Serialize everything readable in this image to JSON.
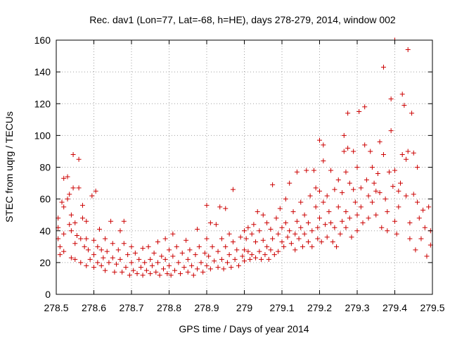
{
  "chart_data": {
    "type": "scatter",
    "title": "Rec. dav1 (Lon=77, Lat=-68, h=HE), days 278-279, 2014, window 002",
    "xlabel": "GPS time / Days of year 2014",
    "ylabel": "STEC from uqrg / TECUs",
    "xlim": [
      278.5,
      279.5
    ],
    "ylim": [
      0,
      160
    ],
    "xticks": [
      "278.5",
      "278.6",
      "278.7",
      "278.8",
      "278.9",
      "279",
      "279.1",
      "279.2",
      "279.3",
      "279.4",
      "279.5"
    ],
    "yticks": [
      "0",
      "20",
      "40",
      "60",
      "80",
      "100",
      "120",
      "140",
      "160"
    ],
    "grid": true,
    "legend": "none",
    "marker": "plus",
    "color": "#cc0000",
    "series": [
      {
        "points": [
          [
            278.505,
            48
          ],
          [
            278.505,
            42
          ],
          [
            278.505,
            35
          ],
          [
            278.51,
            30
          ],
          [
            278.51,
            25
          ],
          [
            278.515,
            58
          ],
          [
            278.52,
            73
          ],
          [
            278.52,
            55
          ],
          [
            278.52,
            38
          ],
          [
            278.52,
            27
          ],
          [
            278.53,
            74
          ],
          [
            278.53,
            60
          ],
          [
            278.535,
            63
          ],
          [
            278.535,
            44
          ],
          [
            278.54,
            50
          ],
          [
            278.54,
            40
          ],
          [
            278.54,
            23
          ],
          [
            278.545,
            88
          ],
          [
            278.545,
            67
          ],
          [
            278.55,
            45
          ],
          [
            278.55,
            32
          ],
          [
            278.55,
            22
          ],
          [
            278.555,
            37
          ],
          [
            278.56,
            85
          ],
          [
            278.56,
            67
          ],
          [
            278.565,
            35
          ],
          [
            278.565,
            20
          ],
          [
            278.57,
            56
          ],
          [
            278.57,
            48
          ],
          [
            278.575,
            30
          ],
          [
            278.58,
            46
          ],
          [
            278.58,
            35
          ],
          [
            278.58,
            18
          ],
          [
            278.585,
            28
          ],
          [
            278.59,
            22
          ],
          [
            278.595,
            62
          ],
          [
            278.6,
            34
          ],
          [
            278.6,
            25
          ],
          [
            278.6,
            17
          ],
          [
            278.605,
            65
          ],
          [
            278.61,
            30
          ],
          [
            278.61,
            20
          ],
          [
            278.615,
            41
          ],
          [
            278.62,
            28
          ],
          [
            278.62,
            18
          ],
          [
            278.625,
            23
          ],
          [
            278.63,
            35
          ],
          [
            278.63,
            15
          ],
          [
            278.635,
            27
          ],
          [
            278.64,
            20
          ],
          [
            278.645,
            46
          ],
          [
            278.65,
            32
          ],
          [
            278.65,
            23
          ],
          [
            278.655,
            14
          ],
          [
            278.66,
            19
          ],
          [
            278.665,
            28
          ],
          [
            278.67,
            40
          ],
          [
            278.67,
            22
          ],
          [
            278.675,
            14
          ],
          [
            278.68,
            46
          ],
          [
            278.68,
            32
          ],
          [
            278.685,
            17
          ],
          [
            278.69,
            25
          ],
          [
            278.695,
            12
          ],
          [
            278.7,
            30
          ],
          [
            278.7,
            20
          ],
          [
            278.705,
            15
          ],
          [
            278.71,
            26
          ],
          [
            278.715,
            13
          ],
          [
            278.72,
            22
          ],
          [
            278.725,
            17
          ],
          [
            278.73,
            29
          ],
          [
            278.73,
            12
          ],
          [
            278.735,
            20
          ],
          [
            278.74,
            15
          ],
          [
            278.745,
            30
          ],
          [
            278.75,
            22
          ],
          [
            278.75,
            13
          ],
          [
            278.755,
            18
          ],
          [
            278.76,
            26
          ],
          [
            278.765,
            14
          ],
          [
            278.77,
            33
          ],
          [
            278.77,
            20
          ],
          [
            278.775,
            12
          ],
          [
            278.78,
            24
          ],
          [
            278.785,
            16
          ],
          [
            278.79,
            35
          ],
          [
            278.79,
            22
          ],
          [
            278.795,
            13
          ],
          [
            278.8,
            28
          ],
          [
            278.8,
            18
          ],
          [
            278.805,
            12
          ],
          [
            278.81,
            38
          ],
          [
            278.81,
            24
          ],
          [
            278.815,
            15
          ],
          [
            278.82,
            30
          ],
          [
            278.825,
            20
          ],
          [
            278.83,
            13
          ],
          [
            278.835,
            26
          ],
          [
            278.84,
            17
          ],
          [
            278.845,
            34
          ],
          [
            278.85,
            22
          ],
          [
            278.85,
            14
          ],
          [
            278.855,
            28
          ],
          [
            278.86,
            18
          ],
          [
            278.865,
            12
          ],
          [
            278.87,
            25
          ],
          [
            278.875,
            41
          ],
          [
            278.875,
            16
          ],
          [
            278.88,
            30
          ],
          [
            278.885,
            20
          ],
          [
            278.89,
            14
          ],
          [
            278.895,
            26
          ],
          [
            278.9,
            56
          ],
          [
            278.9,
            35
          ],
          [
            278.9,
            18
          ],
          [
            278.905,
            24
          ],
          [
            278.91,
            45
          ],
          [
            278.91,
            16
          ],
          [
            278.915,
            30
          ],
          [
            278.92,
            21
          ],
          [
            278.925,
            44
          ],
          [
            278.93,
            27
          ],
          [
            278.93,
            17
          ],
          [
            278.935,
            55
          ],
          [
            278.94,
            35
          ],
          [
            278.94,
            22
          ],
          [
            278.945,
            16
          ],
          [
            278.95,
            54
          ],
          [
            278.95,
            30
          ],
          [
            278.955,
            20
          ],
          [
            278.96,
            38
          ],
          [
            278.96,
            25
          ],
          [
            278.965,
            17
          ],
          [
            278.97,
            66
          ],
          [
            278.97,
            33
          ],
          [
            278.975,
            22
          ],
          [
            278.98,
            28
          ],
          [
            278.985,
            18
          ],
          [
            278.99,
            36
          ],
          [
            278.995,
            24
          ],
          [
            279.0,
            40
          ],
          [
            279.0,
            28
          ],
          [
            279.0,
            21
          ],
          [
            279.005,
            35
          ],
          [
            279.01,
            42
          ],
          [
            279.01,
            27
          ],
          [
            279.015,
            22
          ],
          [
            279.02,
            38
          ],
          [
            279.02,
            25
          ],
          [
            279.025,
            44
          ],
          [
            279.03,
            33
          ],
          [
            279.03,
            23
          ],
          [
            279.035,
            52
          ],
          [
            279.04,
            40
          ],
          [
            279.04,
            27
          ],
          [
            279.045,
            22
          ],
          [
            279.05,
            50
          ],
          [
            279.05,
            34
          ],
          [
            279.055,
            25
          ],
          [
            279.06,
            45
          ],
          [
            279.06,
            30
          ],
          [
            279.065,
            22
          ],
          [
            279.07,
            41
          ],
          [
            279.07,
            28
          ],
          [
            279.075,
            69
          ],
          [
            279.075,
            35
          ],
          [
            279.08,
            25
          ],
          [
            279.085,
            48
          ],
          [
            279.09,
            38
          ],
          [
            279.09,
            27
          ],
          [
            279.095,
            54
          ],
          [
            279.1,
            42
          ],
          [
            279.1,
            33
          ],
          [
            279.105,
            30
          ],
          [
            279.11,
            60
          ],
          [
            279.11,
            45
          ],
          [
            279.115,
            36
          ],
          [
            279.12,
            70
          ],
          [
            279.12,
            40
          ],
          [
            279.125,
            32
          ],
          [
            279.13,
            52
          ],
          [
            279.135,
            38
          ],
          [
            279.135,
            28
          ],
          [
            279.14,
            77
          ],
          [
            279.14,
            46
          ],
          [
            279.145,
            35
          ],
          [
            279.15,
            58
          ],
          [
            279.15,
            42
          ],
          [
            279.155,
            30
          ],
          [
            279.16,
            50
          ],
          [
            279.16,
            38
          ],
          [
            279.165,
            78
          ],
          [
            279.17,
            45
          ],
          [
            279.17,
            33
          ],
          [
            279.175,
            62
          ],
          [
            279.18,
            40
          ],
          [
            279.18,
            30
          ],
          [
            279.185,
            78
          ],
          [
            279.19,
            55
          ],
          [
            279.19,
            67
          ],
          [
            279.195,
            42
          ],
          [
            279.195,
            35
          ],
          [
            279.2,
            97
          ],
          [
            279.2,
            65
          ],
          [
            279.2,
            48
          ],
          [
            279.205,
            33
          ],
          [
            279.21,
            94
          ],
          [
            279.21,
            84
          ],
          [
            279.21,
            58
          ],
          [
            279.215,
            44
          ],
          [
            279.22,
            62
          ],
          [
            279.22,
            36
          ],
          [
            279.225,
            52
          ],
          [
            279.23,
            78
          ],
          [
            279.23,
            45
          ],
          [
            279.235,
            33
          ],
          [
            279.24,
            66
          ],
          [
            279.24,
            42
          ],
          [
            279.245,
            30
          ],
          [
            279.25,
            72
          ],
          [
            279.25,
            55
          ],
          [
            279.255,
            38
          ],
          [
            279.26,
            64
          ],
          [
            279.26,
            46
          ],
          [
            279.265,
            100
          ],
          [
            279.265,
            90
          ],
          [
            279.27,
            77
          ],
          [
            279.27,
            52
          ],
          [
            279.27,
            42
          ],
          [
            279.275,
            114
          ],
          [
            279.275,
            92
          ],
          [
            279.28,
            70
          ],
          [
            279.28,
            48
          ],
          [
            279.285,
            36
          ],
          [
            279.29,
            90
          ],
          [
            279.29,
            66
          ],
          [
            279.295,
            58
          ],
          [
            279.3,
            80
          ],
          [
            279.3,
            50
          ],
          [
            279.3,
            40
          ],
          [
            279.305,
            115
          ],
          [
            279.31,
            67
          ],
          [
            279.31,
            55
          ],
          [
            279.315,
            45
          ],
          [
            279.32,
            118
          ],
          [
            279.32,
            94
          ],
          [
            279.325,
            72
          ],
          [
            279.33,
            62
          ],
          [
            279.33,
            48
          ],
          [
            279.335,
            90
          ],
          [
            279.34,
            80
          ],
          [
            279.34,
            58
          ],
          [
            279.345,
            70
          ],
          [
            279.35,
            65
          ],
          [
            279.35,
            50
          ],
          [
            279.355,
            76
          ],
          [
            279.36,
            96
          ],
          [
            279.36,
            64
          ],
          [
            279.365,
            42
          ],
          [
            279.37,
            143
          ],
          [
            279.37,
            88
          ],
          [
            279.375,
            60
          ],
          [
            279.38,
            52
          ],
          [
            279.38,
            40
          ],
          [
            279.385,
            77
          ],
          [
            279.39,
            123
          ],
          [
            279.39,
            103
          ],
          [
            279.395,
            68
          ],
          [
            279.4,
            160
          ],
          [
            279.4,
            78
          ],
          [
            279.4,
            46
          ],
          [
            279.405,
            38
          ],
          [
            279.41,
            65
          ],
          [
            279.41,
            55
          ],
          [
            279.415,
            70
          ],
          [
            279.42,
            126
          ],
          [
            279.42,
            88
          ],
          [
            279.425,
            119
          ],
          [
            279.43,
            85
          ],
          [
            279.43,
            62
          ],
          [
            279.435,
            154
          ],
          [
            279.435,
            90
          ],
          [
            279.44,
            45
          ],
          [
            279.44,
            35
          ],
          [
            279.445,
            114
          ],
          [
            279.45,
            89
          ],
          [
            279.45,
            63
          ],
          [
            279.455,
            28
          ],
          [
            279.46,
            80
          ],
          [
            279.46,
            58
          ],
          [
            279.465,
            48
          ],
          [
            279.47,
            35
          ],
          [
            279.475,
            53
          ],
          [
            279.48,
            42
          ],
          [
            279.485,
            24
          ],
          [
            279.49,
            55
          ],
          [
            279.495,
            40
          ],
          [
            279.495,
            31
          ]
        ]
      }
    ]
  }
}
